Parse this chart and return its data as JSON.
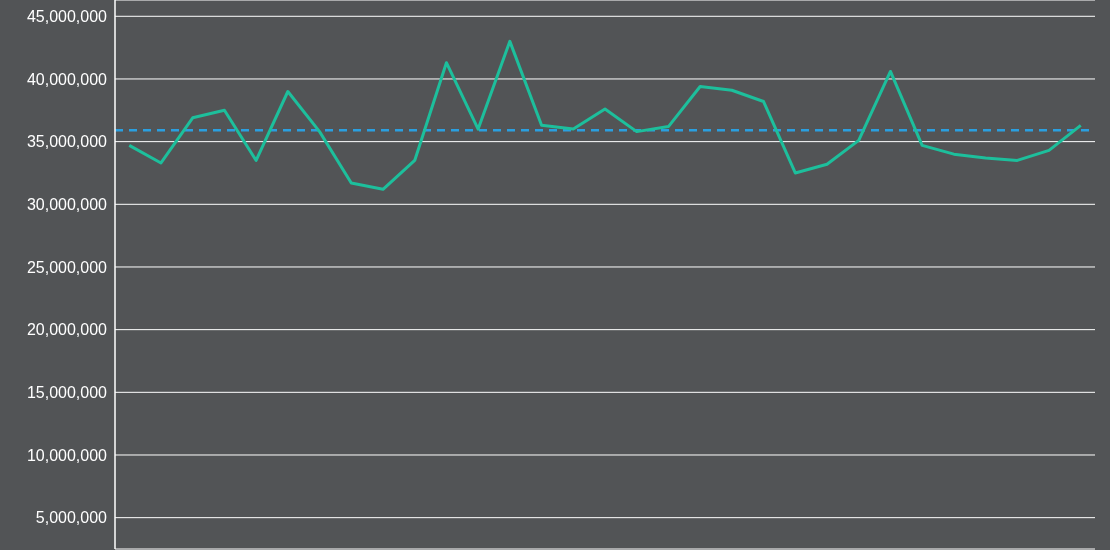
{
  "chart_data": {
    "type": "line",
    "categories": [
      null,
      null,
      null,
      null,
      null,
      null,
      null,
      null,
      null,
      null,
      null,
      null,
      null,
      null,
      null,
      null,
      null,
      null,
      null,
      null,
      null,
      null,
      null,
      null,
      null,
      null,
      null,
      null,
      null,
      null,
      null
    ],
    "series": [
      {
        "color": "#1dbf9c",
        "values": [
          34700000,
          33300000,
          36900000,
          37500000,
          33500000,
          39000000,
          35800000,
          31700000,
          31200000,
          33500000,
          41300000,
          36000000,
          43000000,
          36300000,
          36000000,
          37600000,
          35800000,
          36200000,
          39400000,
          39100000,
          38200000,
          32500000,
          33200000,
          35100000,
          40600000,
          34700000,
          34000000,
          33700000,
          33500000,
          34300000,
          36300000
        ]
      }
    ],
    "ylim": [
      2500000,
      46300000
    ],
    "yticks": [
      {
        "value": 5000000,
        "label": "5,000,000"
      },
      {
        "value": 10000000,
        "label": "10,000,000"
      },
      {
        "value": 15000000,
        "label": "15,000,000"
      },
      {
        "value": 20000000,
        "label": "20,000,000"
      },
      {
        "value": 25000000,
        "label": "25,000,000"
      },
      {
        "value": 30000000,
        "label": "30,000,000"
      },
      {
        "value": 35000000,
        "label": "35,000,000"
      },
      {
        "value": 40000000,
        "label": "40,000,000"
      },
      {
        "value": 45000000,
        "label": "45,000,000"
      }
    ],
    "ref_lines": [
      {
        "axis": "y",
        "value": 35900000,
        "color": "#2a9fe0",
        "line_style": "dashed"
      }
    ],
    "grid": "y",
    "tick_labels": "y",
    "marker": "none",
    "line_style": "solid"
  }
}
